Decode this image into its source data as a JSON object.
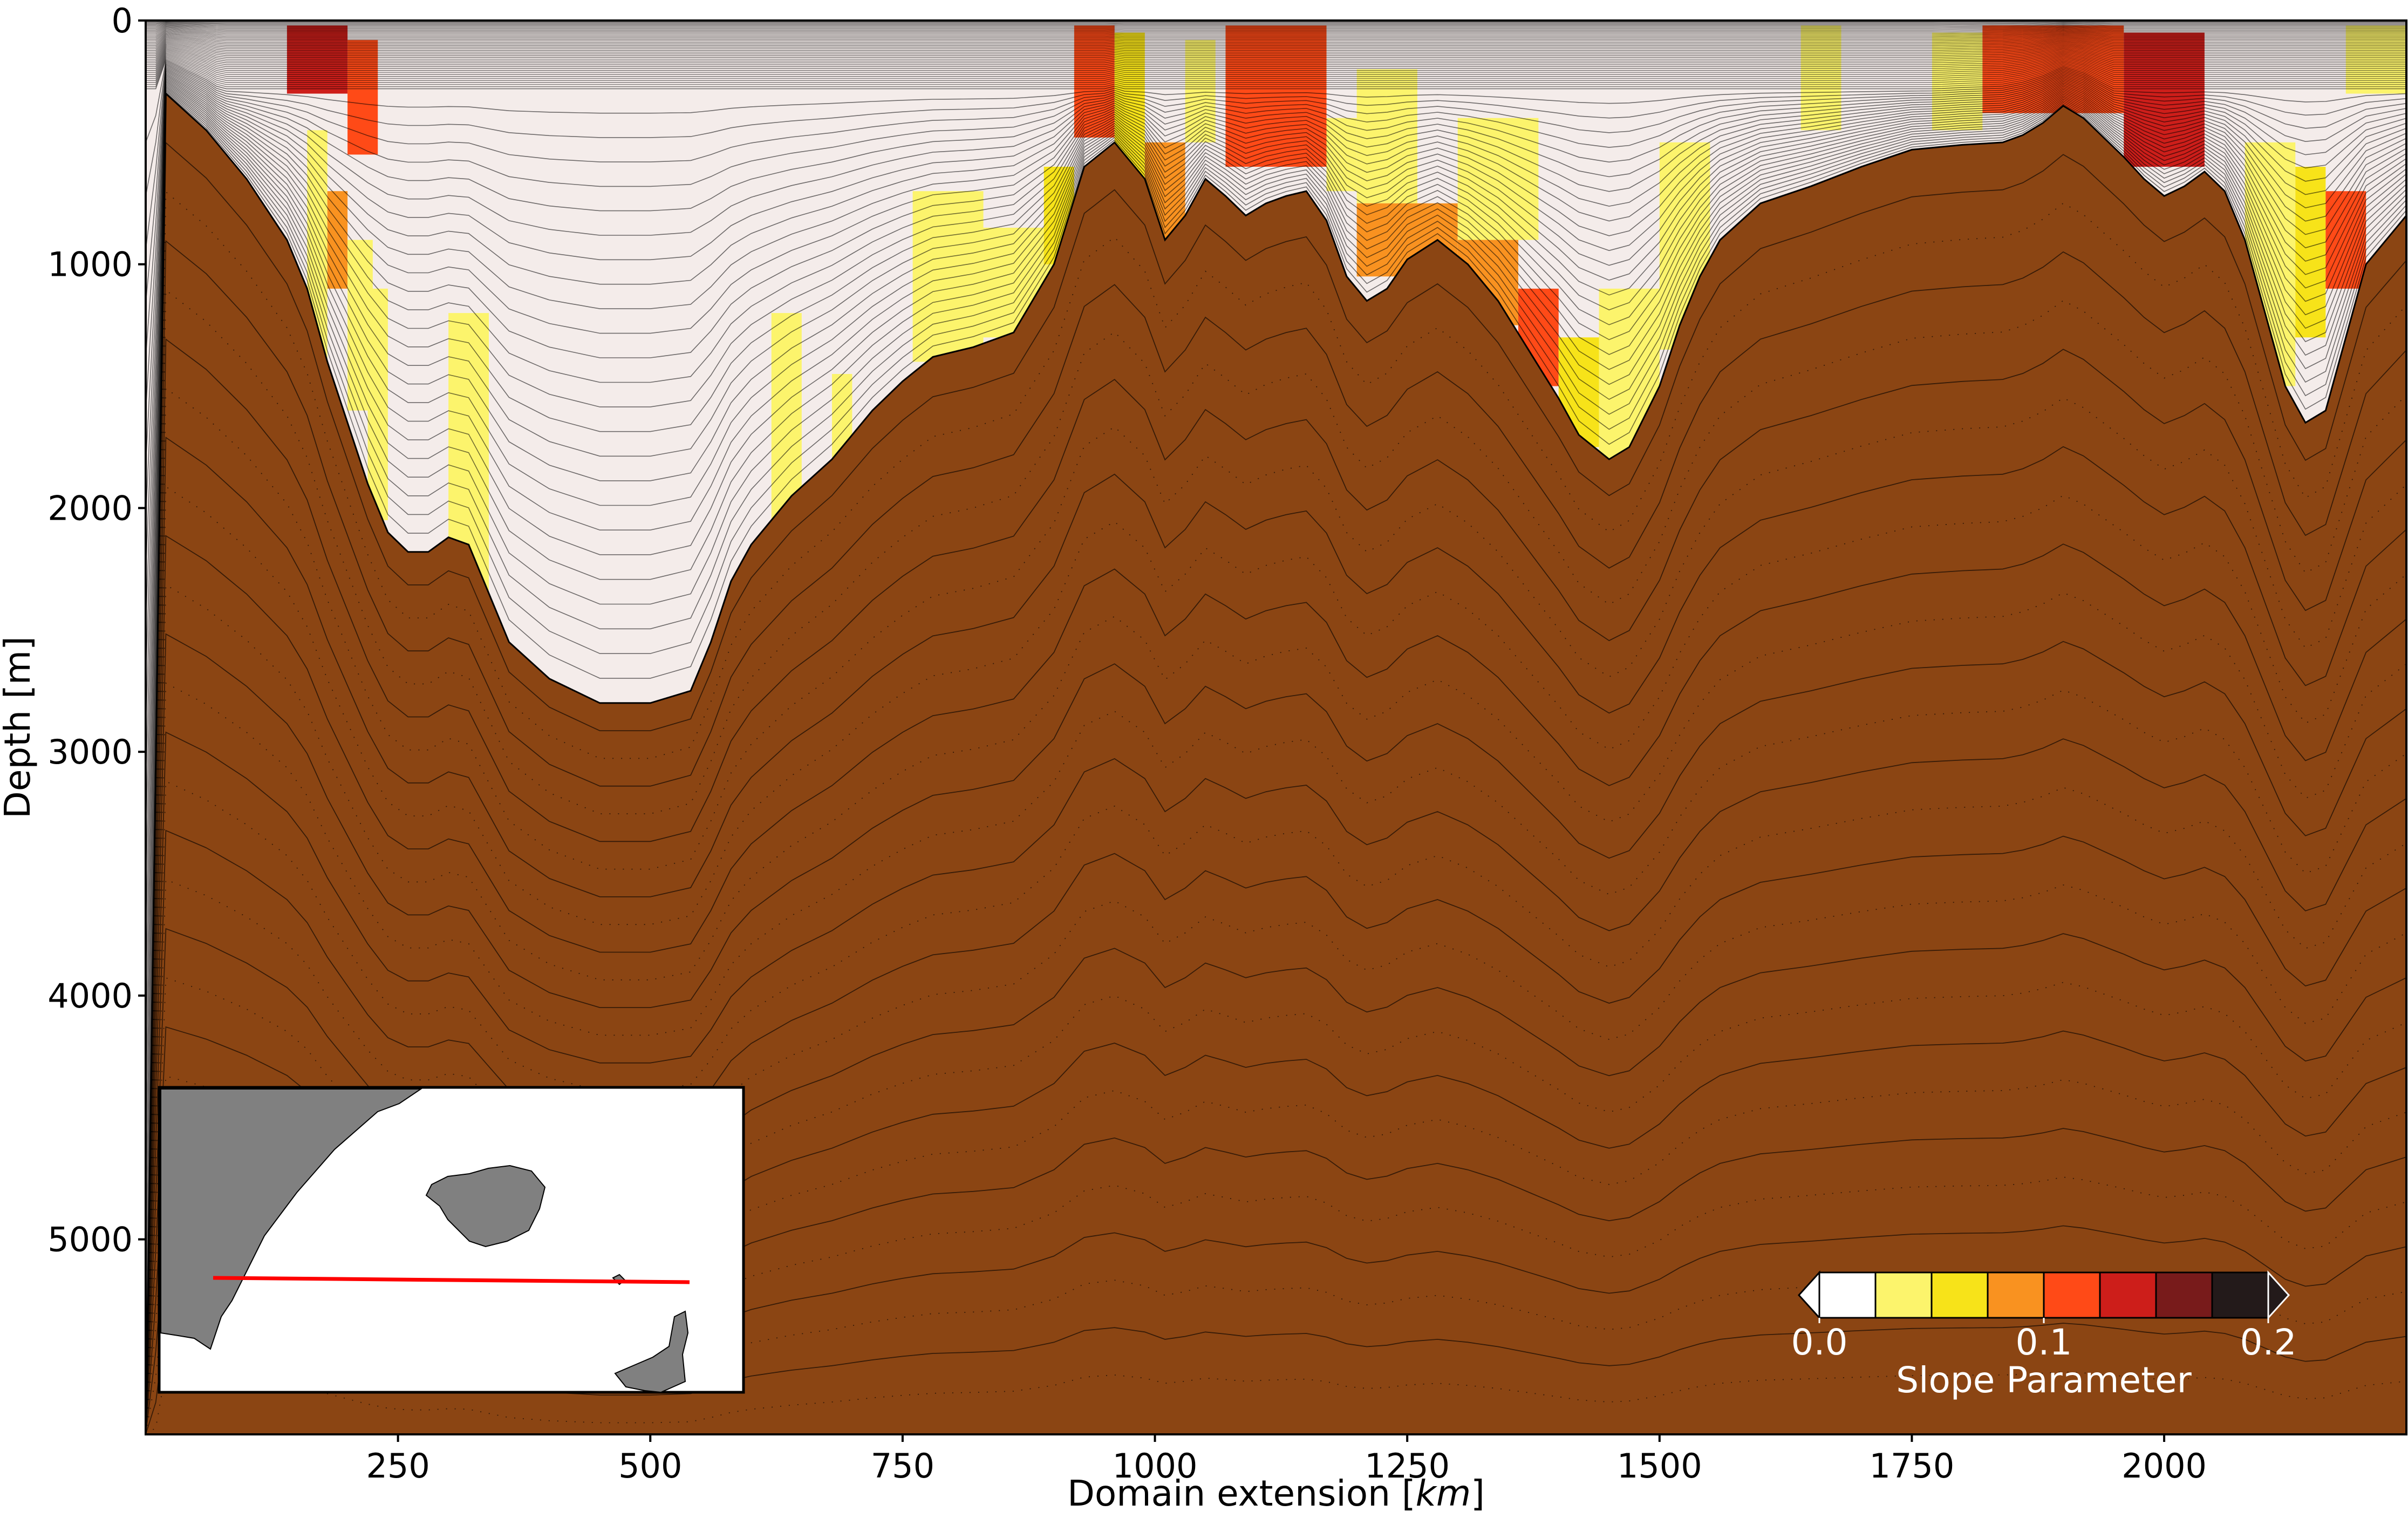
{
  "chart_data": {
    "type": "heatmap",
    "title": "",
    "xlabel_prefix": "Domain extension [",
    "xlabel_unit": "km",
    "xlabel_suffix": "]",
    "ylabel": "Depth [m]",
    "xlim": [
      0,
      2240
    ],
    "ylim": [
      5800,
      0
    ],
    "x_ticks": [
      250,
      500,
      750,
      1000,
      1250,
      1500,
      1750,
      2000
    ],
    "y_ticks": [
      0,
      1000,
      2000,
      3000,
      4000,
      5000
    ],
    "bathymetry": {
      "x": [
        0,
        20,
        60,
        100,
        140,
        160,
        180,
        200,
        220,
        240,
        260,
        280,
        300,
        320,
        340,
        360,
        400,
        450,
        500,
        540,
        560,
        580,
        600,
        640,
        680,
        720,
        750,
        780,
        820,
        860,
        900,
        930,
        960,
        990,
        1010,
        1030,
        1050,
        1070,
        1090,
        1110,
        1130,
        1150,
        1170,
        1190,
        1210,
        1230,
        1250,
        1280,
        1310,
        1340,
        1370,
        1400,
        1420,
        1450,
        1470,
        1500,
        1520,
        1540,
        1560,
        1600,
        1650,
        1700,
        1750,
        1800,
        1840,
        1860,
        1880,
        1900,
        1920,
        1940,
        1960,
        1980,
        2000,
        2020,
        2040,
        2060,
        2080,
        2100,
        2120,
        2140,
        2160,
        2180,
        2200,
        2240
      ],
      "depth": [
        5800,
        300,
        450,
        650,
        900,
        1100,
        1400,
        1650,
        1900,
        2100,
        2180,
        2180,
        2120,
        2150,
        2350,
        2550,
        2700,
        2800,
        2800,
        2750,
        2550,
        2300,
        2150,
        1950,
        1800,
        1600,
        1480,
        1380,
        1340,
        1280,
        1000,
        600,
        500,
        650,
        900,
        800,
        650,
        720,
        800,
        750,
        720,
        700,
        820,
        1050,
        1150,
        1100,
        980,
        900,
        1000,
        1150,
        1350,
        1550,
        1700,
        1800,
        1750,
        1500,
        1250,
        1050,
        900,
        750,
        680,
        600,
        530,
        510,
        500,
        470,
        420,
        350,
        400,
        480,
        560,
        650,
        720,
        680,
        620,
        700,
        900,
        1200,
        1500,
        1650,
        1600,
        1300,
        1000,
        800
      ]
    },
    "colorbar": {
      "label": "Slope Parameter",
      "min": 0.0,
      "max": 0.2,
      "tick_labels": [
        "0.0",
        "0.1",
        "0.2"
      ],
      "tick_values": [
        0.0,
        0.1,
        0.2
      ],
      "colors": [
        "#ffffff",
        "#fcf46c",
        "#f7e319",
        "#f99220",
        "#ff4a17",
        "#cd1e1a",
        "#781b1b",
        "#231a1a"
      ],
      "extend": "both"
    },
    "slope_cells": [
      {
        "x0": 140,
        "x1": 200,
        "d0": 20,
        "d1": 300,
        "class": 5
      },
      {
        "x0": 200,
        "x1": 230,
        "d0": 80,
        "d1": 550,
        "class": 4
      },
      {
        "x0": 160,
        "x1": 180,
        "d0": 450,
        "d1": 1400,
        "class": 1
      },
      {
        "x0": 180,
        "x1": 200,
        "d0": 700,
        "d1": 1100,
        "class": 3
      },
      {
        "x0": 200,
        "x1": 225,
        "d0": 900,
        "d1": 1600,
        "class": 1
      },
      {
        "x0": 220,
        "x1": 240,
        "d0": 1100,
        "d1": 2050,
        "class": 1
      },
      {
        "x0": 300,
        "x1": 340,
        "d0": 1200,
        "d1": 2500,
        "class": 1
      },
      {
        "x0": 620,
        "x1": 650,
        "d0": 1200,
        "d1": 2100,
        "class": 1
      },
      {
        "x0": 680,
        "x1": 700,
        "d0": 1450,
        "d1": 1900,
        "class": 1
      },
      {
        "x0": 760,
        "x1": 830,
        "d0": 700,
        "d1": 1400,
        "class": 1
      },
      {
        "x0": 830,
        "x1": 900,
        "d0": 850,
        "d1": 1300,
        "class": 1
      },
      {
        "x0": 890,
        "x1": 920,
        "d0": 600,
        "d1": 1000,
        "class": 2
      },
      {
        "x0": 920,
        "x1": 960,
        "d0": 20,
        "d1": 480,
        "class": 4
      },
      {
        "x0": 960,
        "x1": 990,
        "d0": 50,
        "d1": 700,
        "class": 2
      },
      {
        "x0": 990,
        "x1": 1030,
        "d0": 500,
        "d1": 900,
        "class": 3
      },
      {
        "x0": 1030,
        "x1": 1060,
        "d0": 80,
        "d1": 500,
        "class": 1
      },
      {
        "x0": 1070,
        "x1": 1170,
        "d0": 20,
        "d1": 600,
        "class": 4
      },
      {
        "x0": 1170,
        "x1": 1200,
        "d0": 400,
        "d1": 700,
        "class": 1
      },
      {
        "x0": 1200,
        "x1": 1260,
        "d0": 200,
        "d1": 750,
        "class": 1
      },
      {
        "x0": 1200,
        "x1": 1300,
        "d0": 750,
        "d1": 1050,
        "class": 3
      },
      {
        "x0": 1300,
        "x1": 1380,
        "d0": 400,
        "d1": 900,
        "class": 1
      },
      {
        "x0": 1300,
        "x1": 1360,
        "d0": 900,
        "d1": 1250,
        "class": 3
      },
      {
        "x0": 1360,
        "x1": 1400,
        "d0": 1100,
        "d1": 1500,
        "class": 4
      },
      {
        "x0": 1400,
        "x1": 1440,
        "d0": 1300,
        "d1": 1750,
        "class": 2
      },
      {
        "x0": 1440,
        "x1": 1500,
        "d0": 1100,
        "d1": 1800,
        "class": 1
      },
      {
        "x0": 1500,
        "x1": 1550,
        "d0": 500,
        "d1": 1350,
        "class": 1
      },
      {
        "x0": 1640,
        "x1": 1680,
        "d0": 20,
        "d1": 450,
        "class": 1
      },
      {
        "x0": 1770,
        "x1": 1820,
        "d0": 50,
        "d1": 450,
        "class": 1
      },
      {
        "x0": 1820,
        "x1": 1960,
        "d0": 20,
        "d1": 380,
        "class": 4
      },
      {
        "x0": 1960,
        "x1": 2040,
        "d0": 50,
        "d1": 600,
        "class": 5
      },
      {
        "x0": 2080,
        "x1": 2130,
        "d0": 500,
        "d1": 1500,
        "class": 1
      },
      {
        "x0": 2130,
        "x1": 2160,
        "d0": 600,
        "d1": 1300,
        "class": 2
      },
      {
        "x0": 2160,
        "x1": 2200,
        "d0": 700,
        "d1": 1100,
        "class": 4
      },
      {
        "x0": 2180,
        "x1": 2240,
        "d0": 20,
        "d1": 300,
        "class": 1
      }
    ],
    "inset_map": {
      "description_hidden": true,
      "section_line_color": "#ff0000"
    }
  }
}
